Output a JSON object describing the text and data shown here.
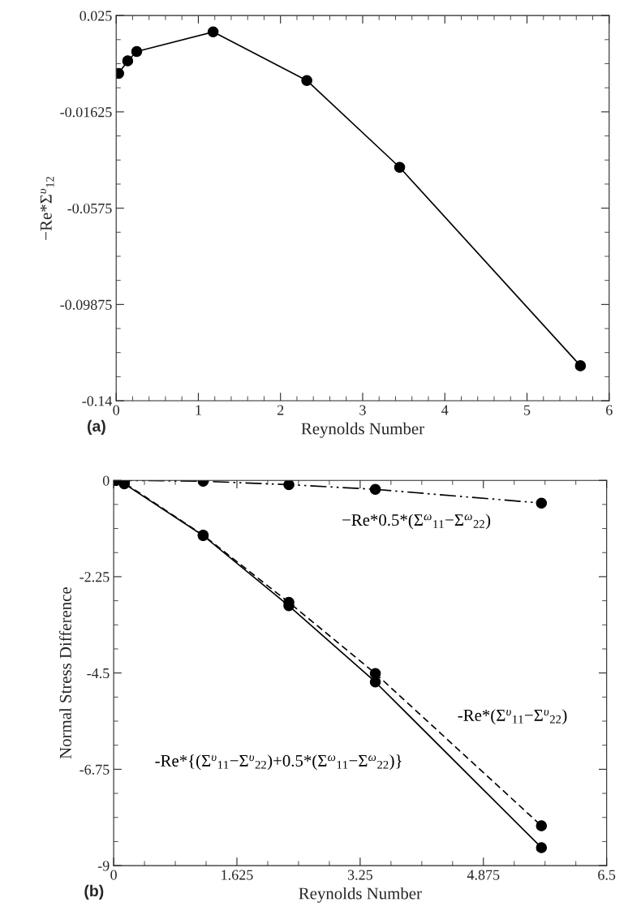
{
  "chart_data": [
    {
      "type": "line",
      "ylabel": "−Re*Σ$^{υ}$$_{12}$",
      "xlabel": "Reynolds Number",
      "marker": "circle",
      "grid": false,
      "legend": false,
      "x": [
        0.03,
        0.14,
        0.25,
        1.18,
        2.32,
        3.45,
        5.65
      ],
      "series": [
        {
          "color": "#000000",
          "line_style": "solid",
          "values": [
            0.0002,
            0.0056,
            0.0096,
            0.018,
            -0.0028,
            -0.04,
            -0.125
          ]
        }
      ],
      "xlim": [
        0,
        6
      ],
      "xticks": [
        0,
        1,
        2,
        3,
        4,
        5,
        6
      ],
      "ylim": [
        -0.14,
        0.025
      ],
      "yticks": [
        0.025,
        -0.01625,
        -0.0575,
        -0.09875,
        -0.14
      ],
      "annotations": [
        "(a)"
      ]
    },
    {
      "type": "line",
      "ylabel": "Normal Stress Difference",
      "xlabel": "Reynolds Number",
      "marker": "circle",
      "grid": false,
      "legend": false,
      "x": [
        0.026,
        0.14,
        1.18,
        2.31,
        3.45,
        5.64
      ],
      "series": [
        {
          "name": "−Re*0.5*(Σ$^{ω}$$_{11}$−Σ$^{ω}$$_{22}$)",
          "color": "#000000",
          "line_style": "dashdotdot",
          "values": [
            0,
            0,
            -0.02,
            -0.1,
            -0.21,
            -0.53
          ]
        },
        {
          "name": "-Re*(Σ$^{υ}$$_{11}$−Σ$^{υ}$$_{22}$)",
          "color": "#000000",
          "line_style": "dashed",
          "values": [
            0,
            -0.06,
            -1.28,
            -2.85,
            -4.51,
            -8.07
          ]
        },
        {
          "name": "-Re*{(Σ$^{υ}$$_{11}$−Σ$^{υ}$$_{22}$)+0.5*(Σ$^{ω}$$_{11}$−Σ$^{ω}$$_{22}$)}",
          "color": "#000000",
          "line_style": "solid",
          "values": [
            0,
            -0.08,
            -1.29,
            -2.93,
            -4.71,
            -8.58
          ]
        }
      ],
      "xlim": [
        0,
        6.5
      ],
      "xticks": [
        0,
        1.625,
        3.25,
        4.875,
        6.5
      ],
      "ylim": [
        -9,
        0
      ],
      "yticks": [
        0,
        -2.25,
        -4.5,
        -6.75,
        -9
      ],
      "annotations": [
        "(b)"
      ]
    }
  ]
}
